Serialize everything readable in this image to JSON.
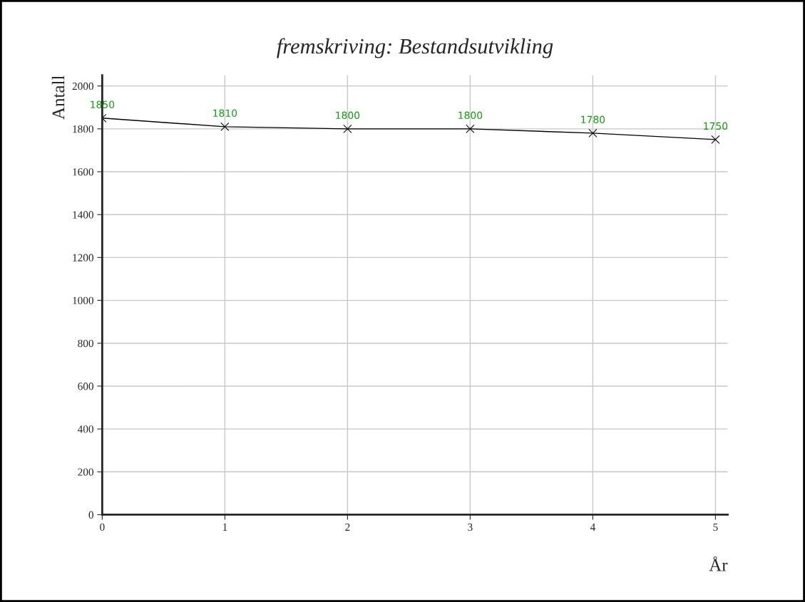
{
  "chart_data": {
    "type": "line",
    "title": "fremskriving: Bestandsutvikling",
    "xlabel": "År",
    "ylabel": "Antall",
    "x": [
      0,
      1,
      2,
      3,
      4,
      5
    ],
    "series": [
      {
        "color": "#000000",
        "values": [
          1850,
          1810,
          1800,
          1800,
          1780,
          1750
        ]
      }
    ],
    "data_labels": true,
    "xlim": [
      0,
      5.1
    ],
    "ylim": [
      0,
      2050
    ],
    "xticks": [
      0,
      1,
      2,
      3,
      4,
      5
    ],
    "yticks": [
      0,
      200,
      400,
      600,
      800,
      1000,
      1200,
      1400,
      1600,
      1800,
      2000
    ],
    "grid": true,
    "marker": "cross",
    "line_style": "solid"
  }
}
